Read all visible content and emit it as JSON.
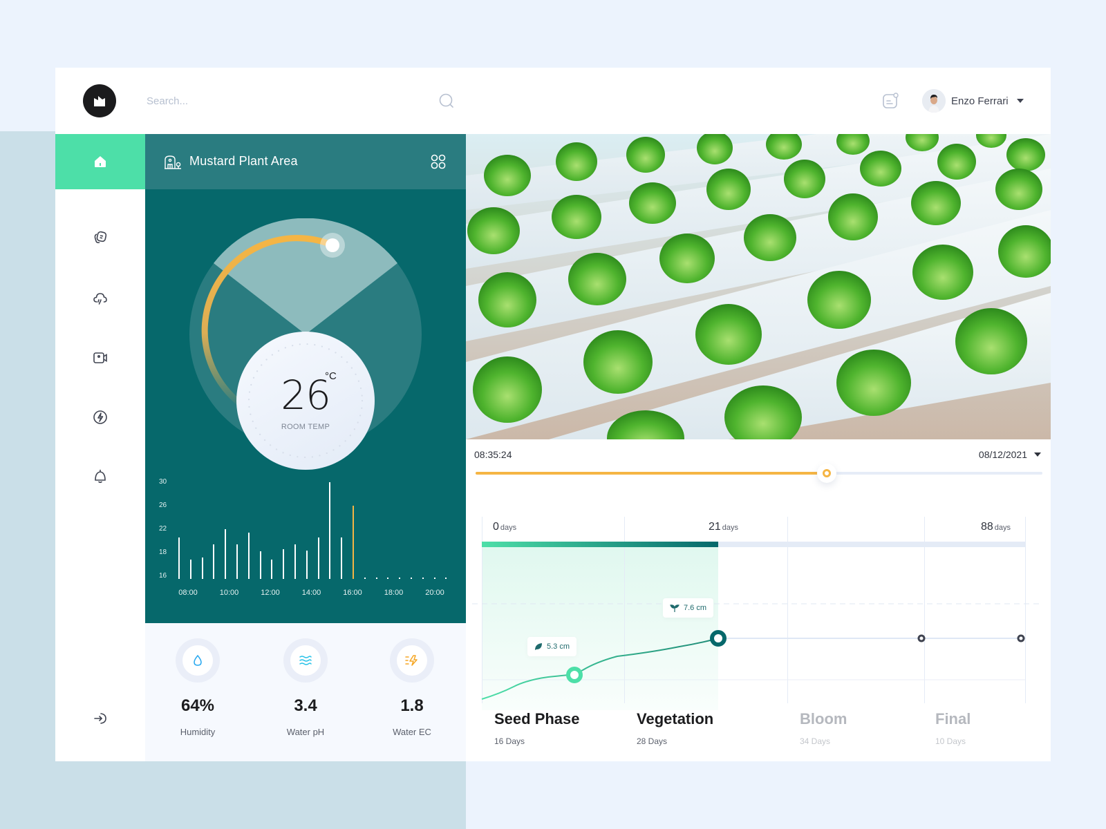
{
  "header": {
    "search_placeholder": "Search...",
    "user": {
      "name": "Enzo Ferrari"
    }
  },
  "sidebar": {
    "items": [
      {
        "name": "home",
        "icon": "home-icon",
        "active": true
      },
      {
        "name": "notes",
        "icon": "notes-icon"
      },
      {
        "name": "weather",
        "icon": "cloud-rain-icon"
      },
      {
        "name": "camera",
        "icon": "video-camera-icon"
      },
      {
        "name": "power",
        "icon": "lightning-icon"
      },
      {
        "name": "alerts",
        "icon": "bell-icon"
      }
    ],
    "logout_icon": "logout-icon"
  },
  "area": {
    "title": "Mustard Plant Area",
    "temperature": {
      "value": "26",
      "unit": "°C",
      "label": "ROOM TEMP"
    }
  },
  "stats": [
    {
      "value": "64%",
      "label": "Humidity",
      "icon": "water-drop-icon",
      "color": "#27a8f0"
    },
    {
      "value": "3.4",
      "label": "Water pH",
      "icon": "waves-icon",
      "color": "#27c2e8"
    },
    {
      "value": "1.8",
      "label": "Water EC",
      "icon": "electric-icon",
      "color": "#f5a623"
    }
  ],
  "playback": {
    "time": "08:35:24",
    "date": "08/12/2021",
    "progress_pct": 62
  },
  "growth": {
    "day_markers": [
      {
        "value": "0",
        "unit": "days"
      },
      {
        "value": "21",
        "unit": "days"
      },
      {
        "value": "88",
        "unit": "days"
      }
    ],
    "tooltips": [
      {
        "value": "5.3 cm",
        "icon": "leaf-icon"
      },
      {
        "value": "7.6 cm",
        "icon": "sprout-icon"
      }
    ],
    "phases": [
      {
        "name": "Seed Phase",
        "days": "16 Days",
        "active": true
      },
      {
        "name": "Vegetation",
        "days": "28 Days",
        "active": true
      },
      {
        "name": "Bloom",
        "days": "34 Days",
        "active": false
      },
      {
        "name": "Final",
        "days": "10 Days",
        "active": false
      }
    ]
  },
  "colors": {
    "accent_green": "#4ddfa8",
    "teal_dark": "#06686b",
    "teal_header": "#2a7c80",
    "orange": "#f5b544"
  },
  "chart_data": {
    "type": "bar",
    "title": "",
    "x_tick_labels": [
      "08:00",
      "10:00",
      "12:00",
      "14:00",
      "16:00",
      "18:00",
      "20:00"
    ],
    "y_tick_labels": [
      "30",
      "26",
      "22",
      "18",
      "16"
    ],
    "values": [
      20.6,
      17.4,
      17.6,
      19.4,
      22,
      19.4,
      21.4,
      18.2,
      17.4,
      18.6,
      19.4,
      18.4,
      20.6,
      30,
      20.6,
      26
    ],
    "highlighted_index": 15,
    "future_slots": 8,
    "xlabel": "",
    "ylabel": "",
    "ylim": [
      16,
      30
    ]
  }
}
